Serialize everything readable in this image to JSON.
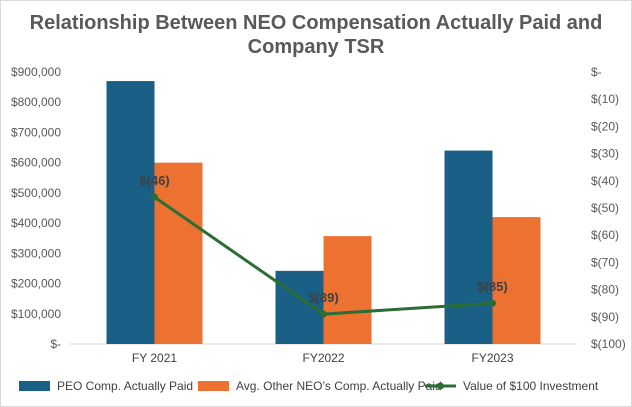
{
  "chart_data": {
    "type": "bar",
    "title_lines": [
      "Relationship Between NEO Compensation Actually Paid and",
      "Company TSR"
    ],
    "categories": [
      "FY 2021",
      "FY2022",
      "FY2023"
    ],
    "series": [
      {
        "name": "PEO Comp. Actually Paid",
        "kind": "bar",
        "axis": "left",
        "color": "#1a5f86",
        "values": [
          870000,
          242000,
          640000
        ]
      },
      {
        "name": "Avg. Other NEO’s Comp. Actually Paid",
        "kind": "bar",
        "axis": "left",
        "color": "#ed7232",
        "values": [
          600000,
          357000,
          420000
        ]
      },
      {
        "name": "Value of $100 Investment",
        "kind": "line",
        "axis": "right",
        "color": "#2b6e35",
        "values": [
          -46,
          -89,
          -85
        ],
        "labels": [
          "$(46)",
          "$(89)",
          "$(85)"
        ]
      }
    ],
    "left_axis": {
      "ylim": [
        0,
        900000
      ],
      "ticks": [
        0,
        100000,
        200000,
        300000,
        400000,
        500000,
        600000,
        700000,
        800000,
        900000
      ],
      "tick_labels": [
        "$-",
        "$100,000",
        "$200,000",
        "$300,000",
        "$400,000",
        "$500,000",
        "$600,000",
        "$700,000",
        "$800,000",
        "$900,000"
      ]
    },
    "right_axis": {
      "ylim": [
        -100,
        0
      ],
      "ticks": [
        0,
        -10,
        -20,
        -30,
        -40,
        -50,
        -60,
        -70,
        -80,
        -90,
        -100
      ],
      "tick_labels": [
        "$-",
        "$(10)",
        "$(20)",
        "$(30)",
        "$(40)",
        "$(50)",
        "$(60)",
        "$(70)",
        "$(80)",
        "$(90)",
        "$(100)"
      ]
    },
    "legend_position": "bottom",
    "grid": false
  }
}
